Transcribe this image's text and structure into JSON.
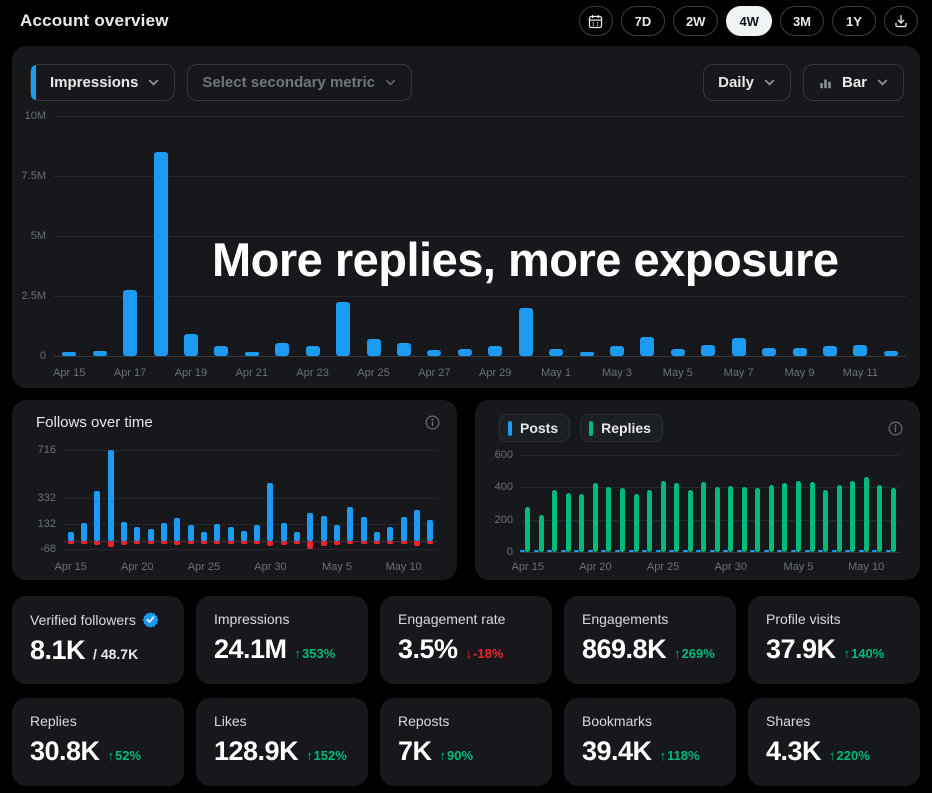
{
  "header": {
    "title": "Account overview",
    "ranges": [
      {
        "label": "7D",
        "active": false
      },
      {
        "label": "2W",
        "active": false
      },
      {
        "label": "4W",
        "active": true
      },
      {
        "label": "3M",
        "active": false
      },
      {
        "label": "1Y",
        "active": false
      }
    ]
  },
  "main_chart": {
    "primary_metric": "Impressions",
    "secondary_metric_placeholder": "Select secondary metric",
    "granularity": "Daily",
    "chart_type": "Bar",
    "overlay_text": "More replies, more exposure"
  },
  "follows_card": {
    "title": "Follows over time"
  },
  "posts_card": {
    "legend": [
      {
        "label": "Posts",
        "color": "#1d9bf0"
      },
      {
        "label": "Replies",
        "color": "#00ba7c"
      }
    ]
  },
  "icons": {
    "up_arrow": "↑",
    "down_arrow": "↓"
  },
  "colors": {
    "accent_blue": "#1d9bf0",
    "positive_green": "#00ba7c",
    "negative_red": "#f4212e"
  },
  "metrics": {
    "cards": [
      {
        "label": "Verified followers",
        "value": "8.1K",
        "suffix": "/ 48.7K",
        "badge": true
      },
      {
        "label": "Impressions",
        "value": "24.1M",
        "delta": "353%",
        "trend": "up"
      },
      {
        "label": "Engagement rate",
        "value": "3.5%",
        "delta": "-18%",
        "trend": "down"
      },
      {
        "label": "Engagements",
        "value": "869.8K",
        "delta": "269%",
        "trend": "up"
      },
      {
        "label": "Profile visits",
        "value": "37.9K",
        "delta": "140%",
        "trend": "up"
      },
      {
        "label": "Replies",
        "value": "30.8K",
        "delta": "52%",
        "trend": "up"
      },
      {
        "label": "Likes",
        "value": "128.9K",
        "delta": "152%",
        "trend": "up"
      },
      {
        "label": "Reposts",
        "value": "7K",
        "delta": "90%",
        "trend": "up"
      },
      {
        "label": "Bookmarks",
        "value": "39.4K",
        "delta": "118%",
        "trend": "up"
      },
      {
        "label": "Shares",
        "value": "4.3K",
        "delta": "220%",
        "trend": "up"
      }
    ]
  },
  "chart_data": [
    {
      "id": "impressions",
      "type": "bar",
      "title": "Impressions (Daily, 4W)",
      "ylabel": "Impressions",
      "ylim": [
        0,
        10000000
      ],
      "categories": [
        "Apr 15",
        "Apr 16",
        "Apr 17",
        "Apr 18",
        "Apr 19",
        "Apr 20",
        "Apr 21",
        "Apr 22",
        "Apr 23",
        "Apr 24",
        "Apr 25",
        "Apr 26",
        "Apr 27",
        "Apr 28",
        "Apr 29",
        "Apr 30",
        "May 1",
        "May 2",
        "May 3",
        "May 4",
        "May 5",
        "May 6",
        "May 7",
        "May 8",
        "May 9",
        "May 10",
        "May 11",
        "May 12"
      ],
      "series": [
        {
          "name": "impressions",
          "color": "#1d9bf0",
          "values": [
            150000,
            200000,
            2750000,
            8500000,
            900000,
            400000,
            150000,
            550000,
            400000,
            2250000,
            700000,
            550000,
            250000,
            300000,
            400000,
            2000000,
            300000,
            150000,
            400000,
            800000,
            300000,
            450000,
            750000,
            350000,
            350000,
            400000,
            450000,
            200000
          ]
        }
      ],
      "gridlines": [
        {
          "value": 0,
          "label": "0"
        },
        {
          "value": 2500000,
          "label": "2.5M"
        },
        {
          "value": 5000000,
          "label": "5M"
        },
        {
          "value": 7500000,
          "label": "7.5M"
        },
        {
          "value": 10000000,
          "label": "10M"
        }
      ],
      "xtick_indices": [
        0,
        2,
        4,
        6,
        8,
        10,
        12,
        14,
        16,
        18,
        20,
        22,
        24,
        26
      ]
    },
    {
      "id": "follows",
      "type": "bar",
      "title": "Follows over time",
      "ylim": [
        -90,
        730
      ],
      "categories": [
        "Apr 15",
        "Apr 16",
        "Apr 17",
        "Apr 18",
        "Apr 19",
        "Apr 20",
        "Apr 21",
        "Apr 22",
        "Apr 23",
        "Apr 24",
        "Apr 25",
        "Apr 26",
        "Apr 27",
        "Apr 28",
        "Apr 29",
        "Apr 30",
        "May 1",
        "May 2",
        "May 3",
        "May 4",
        "May 5",
        "May 6",
        "May 7",
        "May 8",
        "May 9",
        "May 10",
        "May 11",
        "May 12"
      ],
      "series": [
        {
          "name": "follows",
          "color": "#1d9bf0",
          "values": [
            70,
            135,
            390,
            716,
            145,
            105,
            95,
            140,
            175,
            120,
            65,
            130,
            110,
            75,
            125,
            455,
            135,
            65,
            215,
            195,
            120,
            265,
            185,
            70,
            105,
            185,
            245,
            160
          ]
        },
        {
          "name": "unfollows",
          "color": "#f4212e",
          "values": [
            -25,
            -25,
            -35,
            -50,
            -35,
            -30,
            -25,
            -30,
            -35,
            -25,
            -30,
            -30,
            -30,
            -25,
            -30,
            -45,
            -35,
            -25,
            -68,
            -40,
            -35,
            -30,
            -30,
            -25,
            -25,
            -30,
            -45,
            -30
          ]
        }
      ],
      "gridlines": [
        {
          "value": 716,
          "label": "716"
        },
        {
          "value": 332,
          "label": "332"
        },
        {
          "value": 132,
          "label": "132"
        },
        {
          "value": -68,
          "label": "-68"
        },
        {
          "value": 0,
          "label": ""
        }
      ],
      "xtick_indices": [
        0,
        5,
        10,
        15,
        20,
        25
      ]
    },
    {
      "id": "posts-replies",
      "type": "bar",
      "title": "Posts vs Replies",
      "ylim": [
        0,
        620
      ],
      "categories": [
        "Apr 15",
        "Apr 16",
        "Apr 17",
        "Apr 18",
        "Apr 19",
        "Apr 20",
        "Apr 21",
        "Apr 22",
        "Apr 23",
        "Apr 24",
        "Apr 25",
        "Apr 26",
        "Apr 27",
        "Apr 28",
        "Apr 29",
        "Apr 30",
        "May 1",
        "May 2",
        "May 3",
        "May 4",
        "May 5",
        "May 6",
        "May 7",
        "May 8",
        "May 9",
        "May 10",
        "May 11",
        "May 12"
      ],
      "series": [
        {
          "name": "posts",
          "color": "#1d9bf0",
          "values": [
            10,
            10,
            10,
            10,
            10,
            10,
            10,
            10,
            10,
            10,
            10,
            10,
            10,
            10,
            10,
            10,
            10,
            10,
            10,
            10,
            10,
            10,
            10,
            10,
            10,
            10,
            10,
            10
          ]
        },
        {
          "name": "replies",
          "color": "#00ba7c",
          "values": [
            280,
            230,
            385,
            365,
            360,
            430,
            405,
            395,
            360,
            385,
            440,
            425,
            385,
            435,
            400,
            410,
            405,
            395,
            415,
            430,
            440,
            435,
            385,
            415,
            440,
            465,
            415,
            395
          ]
        }
      ],
      "gridlines": [
        {
          "value": 600,
          "label": "600"
        },
        {
          "value": 400,
          "label": "400"
        },
        {
          "value": 200,
          "label": "200"
        },
        {
          "value": 0,
          "label": "0"
        }
      ],
      "xtick_indices": [
        0,
        5,
        10,
        15,
        20,
        25
      ]
    }
  ]
}
